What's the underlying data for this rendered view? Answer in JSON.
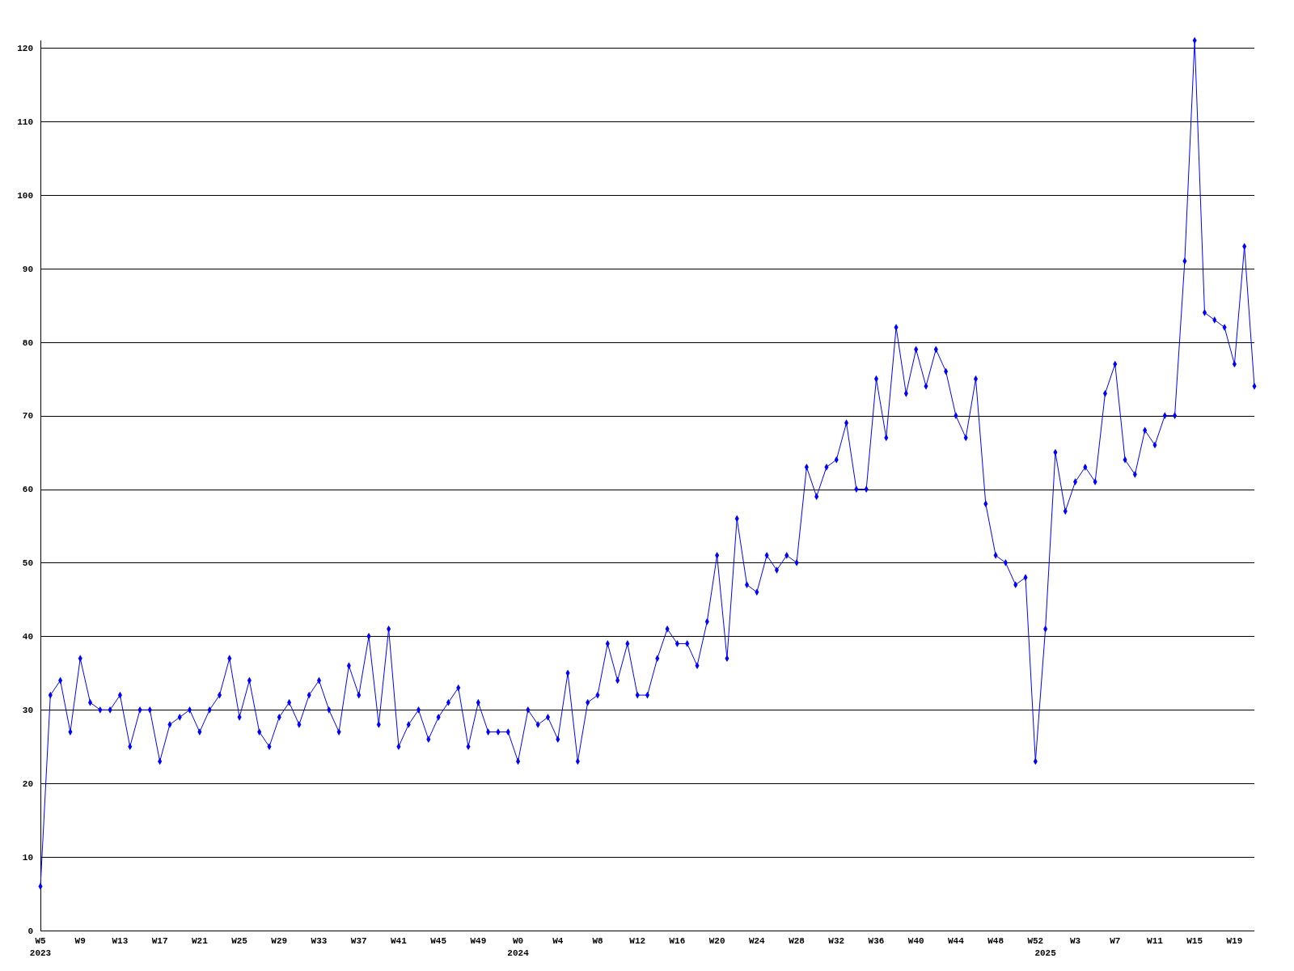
{
  "chart_data": {
    "type": "line",
    "categories": [
      "W5\n2023",
      null,
      null,
      null,
      "W9",
      null,
      null,
      null,
      "W13",
      null,
      null,
      null,
      "W17",
      null,
      null,
      null,
      "W21",
      null,
      null,
      null,
      "W25",
      null,
      null,
      null,
      "W29",
      null,
      null,
      null,
      "W33",
      null,
      null,
      null,
      "W37",
      null,
      null,
      null,
      "W41",
      null,
      null,
      null,
      "W45",
      null,
      null,
      null,
      "W49",
      null,
      null,
      null,
      "W0\n2024",
      null,
      null,
      null,
      "W4",
      null,
      null,
      null,
      "W8",
      null,
      null,
      null,
      "W12",
      null,
      null,
      null,
      "W16",
      null,
      null,
      null,
      "W20",
      null,
      null,
      null,
      "W24",
      null,
      null,
      null,
      "W28",
      null,
      null,
      null,
      "W32",
      null,
      null,
      null,
      "W36",
      null,
      null,
      null,
      "W40",
      null,
      null,
      null,
      "W44",
      null,
      null,
      null,
      "W48",
      null,
      null,
      null,
      "W52",
      "\n2025",
      null,
      null,
      "W3",
      null,
      null,
      null,
      "W7",
      null,
      null,
      null,
      "W11",
      null,
      null,
      null,
      "W15",
      null,
      null,
      null,
      "W19",
      null,
      null
    ],
    "series": [
      {
        "color": "#0000ff",
        "values": [
          6,
          32,
          34,
          27,
          37,
          31,
          30,
          30,
          32,
          25,
          30,
          30,
          23,
          28,
          29,
          30,
          27,
          30,
          32,
          37,
          29,
          34,
          27,
          25,
          29,
          31,
          28,
          32,
          34,
          30,
          27,
          36,
          32,
          40,
          28,
          41,
          25,
          28,
          30,
          26,
          29,
          31,
          33,
          25,
          31,
          27,
          27,
          27,
          23,
          30,
          28,
          29,
          26,
          35,
          23,
          31,
          32,
          39,
          34,
          39,
          32,
          32,
          37,
          41,
          39,
          39,
          36,
          42,
          51,
          37,
          56,
          47,
          46,
          51,
          49,
          51,
          50,
          63,
          59,
          63,
          64,
          69,
          60,
          60,
          75,
          67,
          82,
          73,
          79,
          74,
          79,
          76,
          70,
          67,
          75,
          58,
          51,
          50,
          47,
          48,
          23,
          41,
          65,
          57,
          61,
          63,
          61,
          73,
          77,
          64,
          62,
          68,
          66,
          70,
          70,
          91,
          121,
          84,
          83,
          82,
          77,
          93,
          74
        ]
      }
    ],
    "ylim": [
      0,
      121
    ],
    "yticks": [
      0,
      10,
      20,
      30,
      40,
      50,
      60,
      70,
      80,
      90,
      100,
      110,
      120
    ],
    "grid": "y",
    "marker": "diamond",
    "line_style": "solid"
  }
}
